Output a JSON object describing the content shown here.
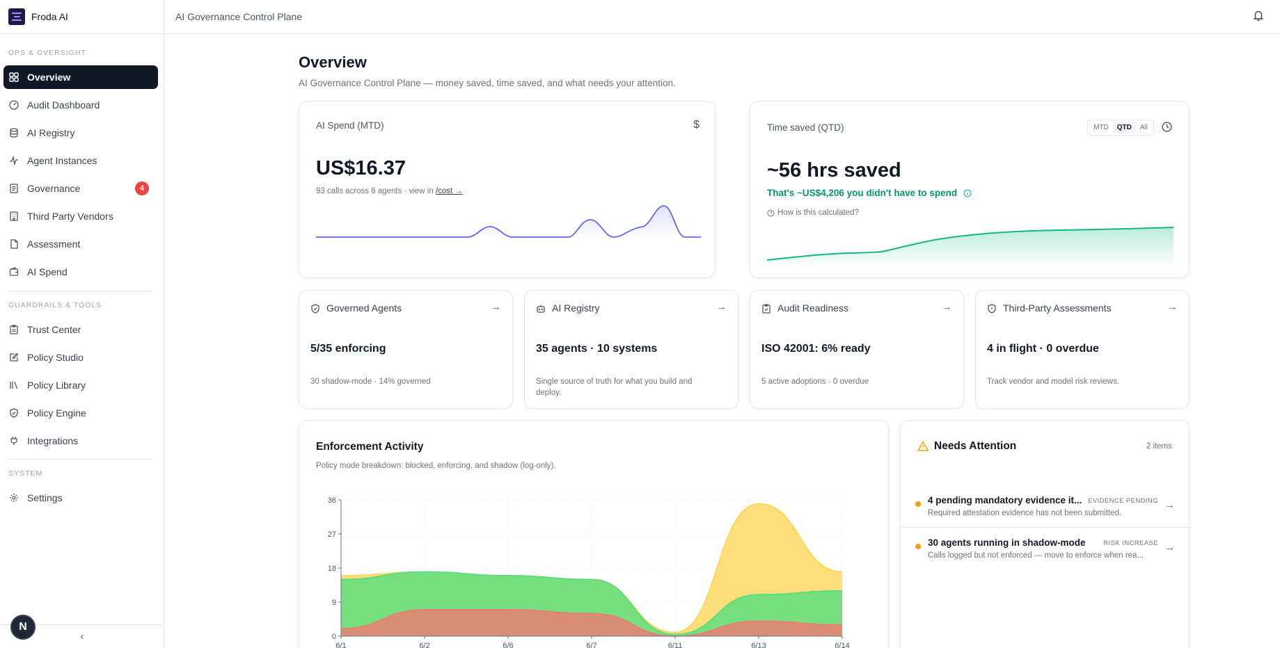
{
  "app": {
    "name": "Froda AI"
  },
  "topbar": {
    "title": "AI Governance Control Plane"
  },
  "sidebar": {
    "sections": [
      {
        "label": "OPS & OVERSIGHT"
      },
      {
        "label": "GUARDRAILS & TOOLS"
      },
      {
        "label": "SYSTEM"
      }
    ],
    "items": [
      {
        "label": "Overview",
        "icon": "grid-icon",
        "active": true
      },
      {
        "label": "Audit Dashboard",
        "icon": "gauge-icon"
      },
      {
        "label": "AI Registry",
        "icon": "database-icon"
      },
      {
        "label": "Agent Instances",
        "icon": "activity-icon"
      },
      {
        "label": "Governance",
        "icon": "scroll-icon",
        "badge": "4"
      },
      {
        "label": "Third Party Vendors",
        "icon": "building-icon"
      },
      {
        "label": "Assessment",
        "icon": "file-icon"
      },
      {
        "label": "AI Spend",
        "icon": "wallet-icon"
      },
      {
        "label": "Trust Center",
        "icon": "clipboard-icon"
      },
      {
        "label": "Policy Studio",
        "icon": "edit-icon"
      },
      {
        "label": "Policy Library",
        "icon": "library-icon"
      },
      {
        "label": "Policy Engine",
        "icon": "shield-icon"
      },
      {
        "label": "Integrations",
        "icon": "plug-icon"
      },
      {
        "label": "Settings",
        "icon": "gear-icon"
      }
    ],
    "avatar_letter": "N",
    "collapse_glyph": "‹"
  },
  "overview": {
    "title": "Overview",
    "subtitle": "AI Governance Control Plane — money saved, time saved, and what needs your attention."
  },
  "spend_card": {
    "label": "AI Spend (MTD)",
    "currency_symbol": "$",
    "value": "US$16.37",
    "note_prefix": "93 calls across 6 agents · view in ",
    "note_link": "/cost →"
  },
  "time_card": {
    "label": "Time saved (QTD)",
    "ranges": [
      "MTD",
      "QTD",
      "All"
    ],
    "selected_range": "QTD",
    "value": "~56 hrs saved",
    "savings": "That's ~US$4,206 you didn't have to spend",
    "how_link": "How is this calculated?"
  },
  "mini_cards": [
    {
      "title": "Governed Agents",
      "icon": "shield-check-icon",
      "value": "5/35 enforcing",
      "note": "30 shadow-mode · 14% governed"
    },
    {
      "title": "AI Registry",
      "icon": "bot-icon",
      "value": "35 agents · 10 systems",
      "note": "Single source of truth for what you build and deploy."
    },
    {
      "title": "Audit Readiness",
      "icon": "clipboard-check-icon",
      "value": "ISO 42001: 6% ready",
      "note": "5 active adoptions · 0 overdue"
    },
    {
      "title": "Third-Party Assessments",
      "icon": "shield-icon",
      "value": "4 in flight · 0 overdue",
      "note": "Track vendor and model risk reviews."
    }
  ],
  "mini_arrow": "→",
  "enforcement": {
    "title": "Enforcement Activity",
    "subtitle": "Policy mode breakdown: blocked, enforcing, and shadow (log-only)."
  },
  "chart_data": {
    "type": "area",
    "stacked": true,
    "x": [
      "6/1",
      "6/2",
      "6/6",
      "6/7",
      "6/11",
      "6/13",
      "6/14"
    ],
    "ylim": [
      0,
      36
    ],
    "yticks": [
      0,
      9,
      18,
      27,
      36
    ],
    "series": [
      {
        "values": [
          2,
          7,
          7,
          6,
          0,
          4,
          3
        ],
        "color": "#f87171"
      },
      {
        "values": [
          13,
          10,
          9,
          9,
          0.5,
          7,
          9
        ],
        "color": "#4ade80"
      },
      {
        "values": [
          1,
          0,
          0,
          0,
          0.5,
          24,
          5
        ],
        "color": "#fcd34d"
      }
    ],
    "grid": true
  },
  "attention": {
    "title": "Needs Attention",
    "count": "2 items",
    "items": [
      {
        "title": "4 pending mandatory evidence it...",
        "tag": "EVIDENCE PENDING",
        "desc": "Required attestation evidence has not been submitted."
      },
      {
        "title": "30 agents running in shadow-mode",
        "tag": "RISK INCREASE",
        "desc": "Calls logged but not enforced — move to enforce when rea..."
      }
    ],
    "arrow": "→"
  },
  "colors": {
    "accent": "#111827",
    "spend_line": "#6366f1",
    "time_line": "#10b981",
    "savings_text": "#059669",
    "badge": "#ef4444",
    "warning": "#f59e0b"
  }
}
